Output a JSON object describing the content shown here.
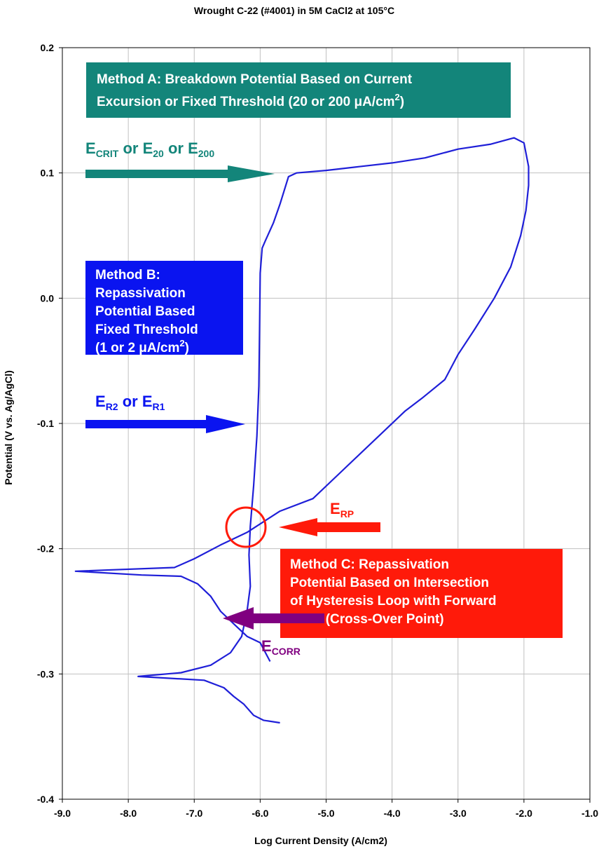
{
  "chart_data": {
    "type": "line",
    "title": "Wrought C-22 (#4001) in 5M CaCl2 at 105°C",
    "xlabel": "Log Current Density (A/cm2)",
    "ylabel": "Potential (V vs. Ag/AgCl)",
    "xlim": [
      -9.0,
      -1.0
    ],
    "ylim": [
      -0.4,
      0.2
    ],
    "x_ticks": [
      -9.0,
      -8.0,
      -7.0,
      -6.0,
      -5.0,
      -4.0,
      -3.0,
      -2.0,
      -1.0
    ],
    "x_tick_labels": [
      "-9.0",
      "-8.0",
      "-7.0",
      "-6.0",
      "-5.0",
      "-4.0",
      "-3.0",
      "-2.0",
      "-1.0"
    ],
    "y_ticks": [
      -0.4,
      -0.3,
      -0.2,
      -0.1,
      0.0,
      0.1,
      0.2
    ],
    "y_tick_labels": [
      "-0.4",
      "-0.3",
      "-0.2",
      "-0.1",
      "0.0",
      "0.1",
      "0.2"
    ],
    "grid": true,
    "legend": "none",
    "series": [
      {
        "color": "#1f1fd8",
        "points": [
          [
            -5.7,
            -0.339
          ],
          [
            -5.95,
            -0.337
          ],
          [
            -6.1,
            -0.333
          ],
          [
            -6.25,
            -0.324
          ],
          [
            -6.4,
            -0.318
          ],
          [
            -6.55,
            -0.311
          ],
          [
            -6.85,
            -0.305
          ],
          [
            -7.85,
            -0.302
          ],
          [
            -7.2,
            -0.299
          ],
          [
            -6.75,
            -0.293
          ],
          [
            -6.45,
            -0.283
          ],
          [
            -6.28,
            -0.27
          ],
          [
            -6.2,
            -0.25
          ],
          [
            -6.15,
            -0.23
          ],
          [
            -6.17,
            -0.205
          ],
          [
            -6.15,
            -0.182
          ],
          [
            -6.1,
            -0.15
          ],
          [
            -6.05,
            -0.11
          ],
          [
            -6.02,
            -0.07
          ],
          [
            -6.01,
            -0.03
          ],
          [
            -6.0,
            0.02
          ],
          [
            -5.97,
            0.04
          ],
          [
            -5.92,
            0.046
          ],
          [
            -5.8,
            0.06
          ],
          [
            -5.7,
            0.075
          ],
          [
            -5.57,
            0.097
          ],
          [
            -5.45,
            0.1
          ],
          [
            -5.0,
            0.102
          ],
          [
            -4.5,
            0.105
          ],
          [
            -4.0,
            0.108
          ],
          [
            -3.5,
            0.112
          ],
          [
            -3.0,
            0.119
          ],
          [
            -2.5,
            0.123
          ],
          [
            -2.15,
            0.128
          ],
          [
            -2.0,
            0.124
          ],
          [
            -1.93,
            0.105
          ],
          [
            -1.93,
            0.09
          ],
          [
            -1.97,
            0.07
          ],
          [
            -2.05,
            0.05
          ],
          [
            -2.2,
            0.025
          ],
          [
            -2.45,
            0.0
          ],
          [
            -2.75,
            -0.025
          ],
          [
            -3.0,
            -0.045
          ],
          [
            -3.2,
            -0.065
          ],
          [
            -3.55,
            -0.08
          ],
          [
            -3.8,
            -0.09
          ],
          [
            -4.1,
            -0.105
          ],
          [
            -4.4,
            -0.12
          ],
          [
            -4.8,
            -0.14
          ],
          [
            -5.2,
            -0.16
          ],
          [
            -5.7,
            -0.17
          ],
          [
            -6.2,
            -0.187
          ],
          [
            -6.6,
            -0.197
          ],
          [
            -7.0,
            -0.208
          ],
          [
            -7.3,
            -0.215
          ],
          [
            -8.8,
            -0.218
          ],
          [
            -7.8,
            -0.221
          ],
          [
            -7.2,
            -0.222
          ],
          [
            -6.95,
            -0.228
          ],
          [
            -6.75,
            -0.238
          ],
          [
            -6.6,
            -0.25
          ],
          [
            -6.4,
            -0.26
          ],
          [
            -6.2,
            -0.27
          ],
          [
            -6.0,
            -0.275
          ],
          [
            -5.85,
            -0.29
          ]
        ]
      }
    ],
    "annotations": {
      "method_a": [
        "Method A: Breakdown Potential Based on Current",
        "Excursion or Fixed Threshold (20 or 200 μA/cm",
        "2",
        ")"
      ],
      "method_b": [
        "Method B:",
        "Repassivation",
        "Potential Based",
        "Fixed Threshold",
        "(1 or 2 μA/cm",
        "2",
        ")"
      ],
      "method_c": [
        "Method C: Repassivation",
        "Potential Based on Intersection",
        "of Hysteresis Loop with Forward",
        "Scan (Cross-Over Point)"
      ],
      "ecrit_label": [
        "E",
        "CRIT",
        " or E",
        "20",
        " or E",
        "200"
      ],
      "er_label": [
        "E",
        "R2",
        " or E",
        "R1"
      ],
      "erp_label": [
        "E",
        "RP"
      ],
      "ecorr_label": [
        "E",
        "CORR"
      ]
    },
    "colors": {
      "teal": "#13857a",
      "blue": "#0a14f0",
      "red": "#ff1a0a",
      "purple": "#800080",
      "curve": "#1f1fd8",
      "grid": "#c0c0c0"
    }
  }
}
